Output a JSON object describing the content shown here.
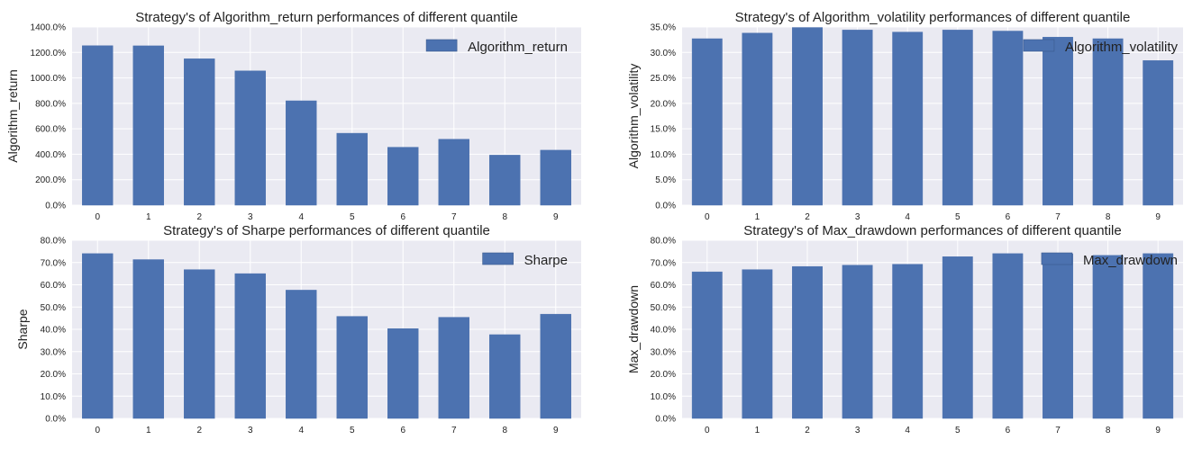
{
  "chart_data": [
    {
      "id": "algorithm-return",
      "type": "bar",
      "title": "Strategy's of Algorithm_return performances of different quantile",
      "xlabel": "",
      "ylabel": "Algorithm_return",
      "legend": "Algorithm_return",
      "legend_position": "top-right",
      "categories": [
        "0",
        "1",
        "2",
        "3",
        "4",
        "5",
        "6",
        "7",
        "8",
        "9"
      ],
      "values": [
        1253,
        1252,
        1150,
        1055,
        820,
        565,
        455,
        518,
        393,
        432
      ],
      "ylim": [
        0,
        1400
      ],
      "yticks": [
        0,
        200,
        400,
        600,
        800,
        1000,
        1200,
        1400
      ],
      "ytick_labels": [
        "0.0%",
        "200.0%",
        "400.0%",
        "600.0%",
        "800.0%",
        "1000.0%",
        "1200.0%",
        "1400.0%"
      ],
      "grid": true
    },
    {
      "id": "algorithm-volatility",
      "type": "bar",
      "title": "Strategy's of Algorithm_volatility performances of different quantile",
      "xlabel": "",
      "ylabel": "Algorithm_volatility",
      "legend": "Algorithm_volatility",
      "legend_position": "top-right",
      "categories": [
        "0",
        "1",
        "2",
        "3",
        "4",
        "5",
        "6",
        "7",
        "8",
        "9"
      ],
      "values": [
        32.7,
        33.8,
        34.9,
        34.4,
        34.0,
        34.4,
        34.2,
        33.0,
        32.7,
        28.4
      ],
      "ylim": [
        0,
        35
      ],
      "yticks": [
        0,
        5,
        10,
        15,
        20,
        25,
        30,
        35
      ],
      "ytick_labels": [
        "0.0%",
        "5.0%",
        "10.0%",
        "15.0%",
        "20.0%",
        "25.0%",
        "30.0%",
        "35.0%"
      ],
      "grid": true
    },
    {
      "id": "sharpe",
      "type": "bar",
      "title": "Strategy's of Sharpe performances of different quantile",
      "xlabel": "",
      "ylabel": "Sharpe",
      "legend": "Sharpe",
      "legend_position": "top-right",
      "categories": [
        "0",
        "1",
        "2",
        "3",
        "4",
        "5",
        "6",
        "7",
        "8",
        "9"
      ],
      "values": [
        74.0,
        71.3,
        66.8,
        65.0,
        57.6,
        45.8,
        40.3,
        45.4,
        37.6,
        46.8
      ],
      "ylim": [
        0,
        80
      ],
      "yticks": [
        0,
        10,
        20,
        30,
        40,
        50,
        60,
        70,
        80
      ],
      "ytick_labels": [
        "0.0%",
        "10.0%",
        "20.0%",
        "30.0%",
        "40.0%",
        "50.0%",
        "60.0%",
        "70.0%",
        "80.0%"
      ],
      "grid": true
    },
    {
      "id": "max-drawdown",
      "type": "bar",
      "title": "Strategy's of Max_drawdown performances of different quantile",
      "xlabel": "",
      "ylabel": "Max_drawdown",
      "legend": "Max_drawdown",
      "legend_position": "top-right",
      "categories": [
        "0",
        "1",
        "2",
        "3",
        "4",
        "5",
        "6",
        "7",
        "8",
        "9"
      ],
      "values": [
        65.8,
        66.8,
        68.2,
        68.8,
        69.2,
        72.6,
        74.0,
        73.9,
        73.2,
        74.0
      ],
      "ylim": [
        0,
        80
      ],
      "yticks": [
        0,
        10,
        20,
        30,
        40,
        50,
        60,
        70,
        80
      ],
      "ytick_labels": [
        "0.0%",
        "10.0%",
        "20.0%",
        "30.0%",
        "40.0%",
        "50.0%",
        "60.0%",
        "70.0%",
        "80.0%"
      ],
      "grid": true
    }
  ]
}
